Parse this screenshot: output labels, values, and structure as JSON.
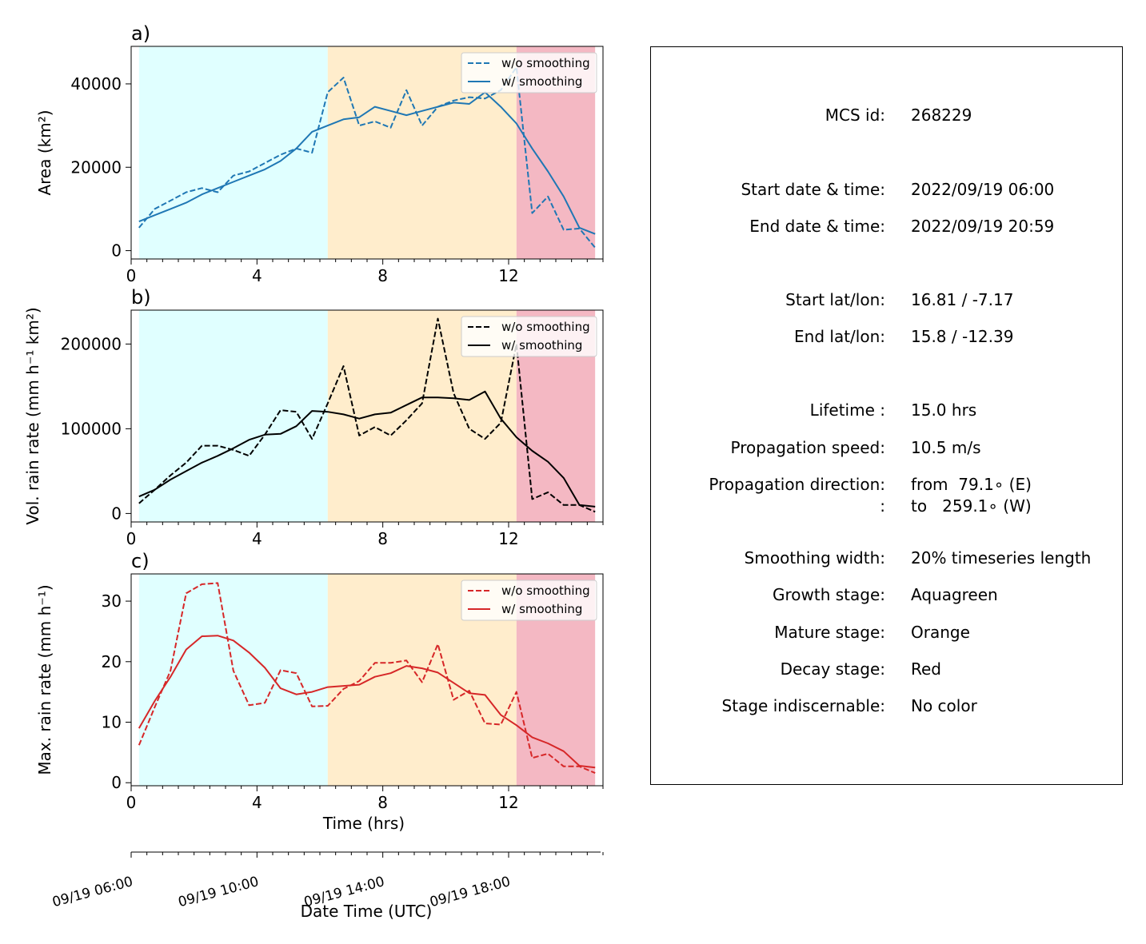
{
  "chart_data": [
    {
      "type": "line",
      "panel_label": "a)",
      "ylabel": "Area  (km²)",
      "xlim": [
        0,
        15
      ],
      "ylim": [
        -2000,
        49000
      ],
      "x_ticks": [
        0,
        4,
        8,
        12
      ],
      "y_ticks": [
        0,
        20000,
        40000
      ],
      "color": "#1f77b4",
      "legend": "top-right",
      "stages": [
        {
          "name": "Growth",
          "x": [
            0.25,
            6.25
          ],
          "color": "#e0ffff"
        },
        {
          "name": "Mature",
          "x": [
            6.25,
            12.25
          ],
          "color": "#ffedcc"
        },
        {
          "name": "Decay",
          "x": [
            12.25,
            14.75
          ],
          "color": "#f4b8c3"
        }
      ],
      "series": [
        {
          "name": "w/o smoothing",
          "style": "dashed",
          "x": [
            0.25,
            0.75,
            1.25,
            1.75,
            2.25,
            2.75,
            3.25,
            3.75,
            4.25,
            4.75,
            5.25,
            5.75,
            6.25,
            6.75,
            7.25,
            7.75,
            8.25,
            8.75,
            9.25,
            9.75,
            10.25,
            10.75,
            11.25,
            11.75,
            12.25,
            12.75,
            13.25,
            13.75,
            14.25,
            14.75
          ],
          "y": [
            5500,
            10000,
            12000,
            14000,
            15000,
            14000,
            18000,
            19000,
            21000,
            23000,
            24500,
            23500,
            38000,
            41500,
            30000,
            31000,
            29500,
            38500,
            30000,
            34500,
            36000,
            36800,
            36500,
            38500,
            44000,
            9000,
            13000,
            5000,
            5300,
            700
          ]
        },
        {
          "name": "w/ smoothing",
          "style": "solid",
          "x": [
            0.25,
            0.75,
            1.25,
            1.75,
            2.25,
            2.75,
            3.25,
            3.75,
            4.25,
            4.75,
            5.25,
            5.75,
            6.25,
            6.75,
            7.25,
            7.75,
            8.25,
            8.75,
            9.25,
            9.75,
            10.25,
            10.75,
            11.25,
            11.75,
            12.25,
            12.75,
            13.25,
            13.75,
            14.25,
            14.75
          ],
          "y": [
            7000,
            8500,
            10000,
            11500,
            13500,
            15000,
            16500,
            18000,
            19500,
            21500,
            24500,
            28500,
            30000,
            31500,
            32000,
            34500,
            33500,
            32500,
            33500,
            34500,
            35500,
            35200,
            38000,
            34500,
            30500,
            24500,
            19000,
            13000,
            5500,
            4000
          ]
        }
      ]
    },
    {
      "type": "line",
      "panel_label": "b)",
      "ylabel": "Vol. rain rate (mm h⁻¹ km²)",
      "xlim": [
        0,
        15
      ],
      "ylim": [
        -10000,
        240000
      ],
      "x_ticks": [
        0,
        4,
        8,
        12
      ],
      "y_ticks": [
        0,
        100000,
        200000
      ],
      "color": "#000000",
      "legend": "top-right",
      "stages": [
        {
          "name": "Growth",
          "x": [
            0.25,
            6.25
          ],
          "color": "#e0ffff"
        },
        {
          "name": "Mature",
          "x": [
            6.25,
            12.25
          ],
          "color": "#ffedcc"
        },
        {
          "name": "Decay",
          "x": [
            12.25,
            14.75
          ],
          "color": "#f4b8c3"
        }
      ],
      "series": [
        {
          "name": "w/o smoothing",
          "style": "dashed",
          "x": [
            0.25,
            0.75,
            1.25,
            1.75,
            2.25,
            2.75,
            3.25,
            3.75,
            4.25,
            4.75,
            5.25,
            5.75,
            6.25,
            6.75,
            7.25,
            7.75,
            8.25,
            8.75,
            9.25,
            9.75,
            10.25,
            10.75,
            11.25,
            11.75,
            12.25,
            12.75,
            13.25,
            13.75,
            14.25,
            14.75
          ],
          "y": [
            12000,
            28000,
            45000,
            60000,
            80000,
            80000,
            75000,
            68000,
            93000,
            122000,
            120000,
            88000,
            130000,
            174000,
            92000,
            102000,
            92000,
            110000,
            130000,
            230000,
            142000,
            100000,
            88000,
            107000,
            200000,
            17000,
            25000,
            10000,
            10000,
            2000
          ]
        },
        {
          "name": "w/ smoothing",
          "style": "solid",
          "x": [
            0.25,
            0.75,
            1.25,
            1.75,
            2.25,
            2.75,
            3.25,
            3.75,
            4.25,
            4.75,
            5.25,
            5.75,
            6.25,
            6.75,
            7.25,
            7.75,
            8.25,
            8.75,
            9.25,
            9.75,
            10.25,
            10.75,
            11.25,
            11.75,
            12.25,
            12.75,
            13.25,
            13.75,
            14.25,
            14.75
          ],
          "y": [
            20000,
            28000,
            40000,
            50000,
            60000,
            68000,
            77000,
            87000,
            93000,
            94000,
            103000,
            121000,
            120000,
            117000,
            112000,
            117000,
            119000,
            128000,
            137000,
            137000,
            136000,
            134000,
            144000,
            112000,
            90000,
            74000,
            61000,
            42000,
            10000,
            8000
          ]
        }
      ]
    },
    {
      "type": "line",
      "panel_label": "c)",
      "ylabel": "Max. rain rate  (mm h⁻¹)",
      "xlabel": "Time (hrs)",
      "xlim": [
        0,
        15
      ],
      "ylim": [
        -0.5,
        34.5
      ],
      "x_ticks": [
        0,
        4,
        8,
        12
      ],
      "y_ticks": [
        0,
        10,
        20,
        30
      ],
      "color": "#d62728",
      "legend": "top-right",
      "stages": [
        {
          "name": "Growth",
          "x": [
            0.25,
            6.25
          ],
          "color": "#e0ffff"
        },
        {
          "name": "Mature",
          "x": [
            6.25,
            12.25
          ],
          "color": "#ffedcc"
        },
        {
          "name": "Decay",
          "x": [
            12.25,
            14.75
          ],
          "color": "#f4b8c3"
        }
      ],
      "series": [
        {
          "name": "w/o smoothing",
          "style": "dashed",
          "x": [
            0.25,
            0.75,
            1.25,
            1.75,
            2.25,
            2.75,
            3.25,
            3.75,
            4.25,
            4.75,
            5.25,
            5.75,
            6.25,
            6.75,
            7.25,
            7.75,
            8.25,
            8.75,
            9.25,
            9.75,
            10.25,
            10.75,
            11.25,
            11.75,
            12.25,
            12.75,
            13.25,
            13.75,
            14.25,
            14.75
          ],
          "y": [
            6.2,
            12.5,
            18.5,
            31.3,
            32.8,
            33.0,
            18.5,
            12.8,
            13.2,
            18.6,
            18.1,
            12.6,
            12.7,
            15.5,
            16.8,
            19.8,
            19.8,
            20.2,
            16.6,
            22.9,
            13.7,
            15.2,
            9.8,
            9.6,
            15.0,
            4.1,
            4.8,
            2.7,
            2.7,
            1.6
          ]
        },
        {
          "name": "w/ smoothing",
          "style": "solid",
          "x": [
            0.25,
            0.75,
            1.25,
            1.75,
            2.25,
            2.75,
            3.25,
            3.75,
            4.25,
            4.75,
            5.25,
            5.75,
            6.25,
            6.75,
            7.25,
            7.75,
            8.25,
            8.75,
            9.25,
            9.75,
            10.25,
            10.75,
            11.25,
            11.75,
            12.25,
            12.75,
            13.25,
            13.75,
            14.25,
            14.75
          ],
          "y": [
            9.0,
            13.5,
            17.5,
            22.0,
            24.2,
            24.3,
            23.5,
            21.5,
            19.0,
            15.6,
            14.6,
            15.0,
            15.8,
            16.0,
            16.2,
            17.5,
            18.1,
            19.3,
            18.9,
            18.2,
            16.5,
            14.8,
            14.5,
            11.2,
            9.5,
            7.5,
            6.5,
            5.2,
            2.8,
            2.5
          ]
        }
      ]
    }
  ],
  "datetime_axis": {
    "xlabel": "Date Time (UTC)",
    "xlim_hours": [
      0,
      15
    ],
    "tick_hours": [
      0,
      4,
      8,
      12
    ],
    "tick_labels": [
      "09/19 06:00",
      "09/19 10:00",
      "09/19 14:00",
      "09/19 18:00"
    ]
  },
  "info": [
    {
      "label": "MCS id:",
      "value": "268229"
    },
    {
      "label": "Start date & time:",
      "value": "2022/09/19 06:00"
    },
    {
      "label": "End date & time:",
      "value": "2022/09/19 20:59"
    },
    {
      "label": "Start lat/lon:",
      "value": "16.81 / -7.17"
    },
    {
      "label": "End lat/lon:",
      "value": "15.8 / -12.39"
    },
    {
      "label": "Lifetime :",
      "value": "15.0 hrs"
    },
    {
      "label": "Propagation speed:",
      "value": "10.5 m/s"
    },
    {
      "label": "Propagation direction:",
      "value": "from  79.1∘ (E)"
    },
    {
      "label": ":",
      "value": "to   259.1∘ (W)"
    },
    {
      "label": "Smoothing width:",
      "value": "20% timeseries length"
    },
    {
      "label": "Growth stage:",
      "value": "Aquagreen"
    },
    {
      "label": "Mature stage:",
      "value": "Orange"
    },
    {
      "label": "Decay stage:",
      "value": "Red"
    },
    {
      "label": "Stage indiscernable:",
      "value": "No color"
    }
  ]
}
